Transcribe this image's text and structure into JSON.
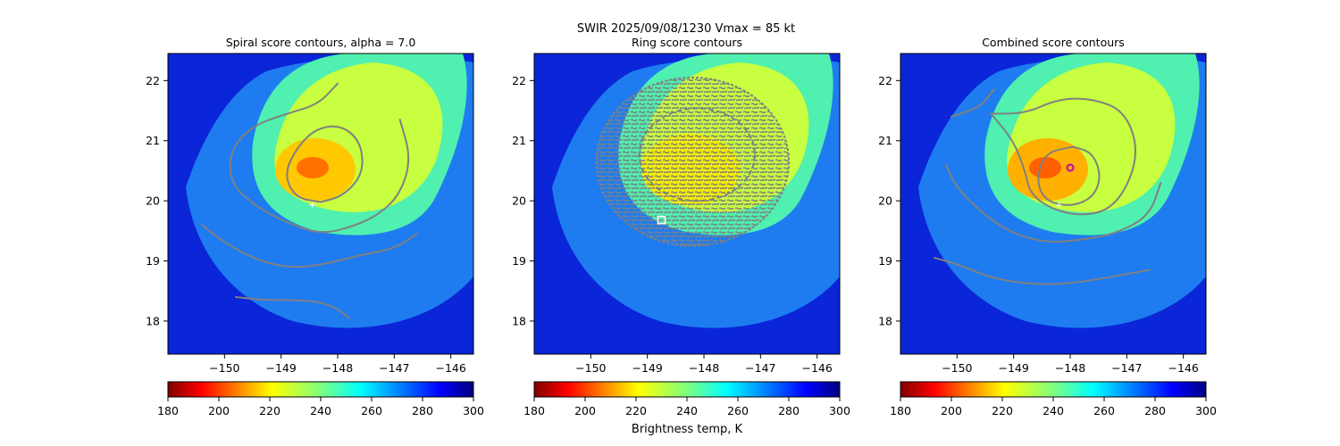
{
  "figure": {
    "suptitle": "SWIR  2025/09/08/1230    Vmax = 85 kt",
    "colorbar_label": "Brightness temp, K"
  },
  "chart_data": [
    {
      "type": "heatmap",
      "panel": "spiral",
      "title": "Spiral score contours, alpha =  7.0",
      "colormap": "jet_r",
      "xlim": [
        -151.0,
        -145.6
      ],
      "ylim": [
        17.45,
        22.45
      ],
      "xticks": [
        -150,
        -149,
        -148,
        -147,
        -146
      ],
      "xtick_labels": [
        "−150",
        "−149",
        "−148",
        "−147",
        "−146"
      ],
      "yticks": [
        18,
        19,
        20,
        21,
        22
      ],
      "ytick_labels": [
        "18",
        "19",
        "20",
        "21",
        "22"
      ],
      "colorbar": {
        "vmin": 180,
        "vmax": 300,
        "ticks": [
          180,
          200,
          220,
          240,
          260,
          280,
          300
        ],
        "tick_labels": [
          "180",
          "200",
          "220",
          "240",
          "260",
          "280",
          "300"
        ]
      },
      "center_marker": [
        -148.45,
        19.93
      ],
      "contour_color": "#808080",
      "contours": [
        [
          [
            -148.3,
            19.98
          ],
          [
            -147.9,
            20.08
          ],
          [
            -147.55,
            20.45
          ],
          [
            -147.58,
            20.95
          ],
          [
            -147.9,
            21.25
          ],
          [
            -148.35,
            21.22
          ],
          [
            -148.7,
            20.92
          ],
          [
            -148.95,
            20.45
          ],
          [
            -148.75,
            20.05
          ],
          [
            -148.3,
            19.98
          ]
        ],
        [
          [
            -148.0,
            21.95
          ],
          [
            -148.35,
            21.6
          ],
          [
            -148.9,
            21.45
          ],
          [
            -149.5,
            21.25
          ],
          [
            -149.9,
            20.85
          ],
          [
            -149.9,
            20.3
          ],
          [
            -149.5,
            19.95
          ],
          [
            -149.2,
            19.78
          ],
          [
            -148.8,
            19.6
          ],
          [
            -148.3,
            19.45
          ],
          [
            -147.8,
            19.55
          ],
          [
            -147.3,
            19.75
          ],
          [
            -146.9,
            20.1
          ],
          [
            -146.7,
            20.7
          ],
          [
            -146.9,
            21.35
          ]
        ],
        [
          [
            -150.4,
            19.6
          ],
          [
            -150.0,
            19.3
          ],
          [
            -149.4,
            19.0
          ],
          [
            -148.8,
            18.88
          ],
          [
            -148.2,
            18.95
          ],
          [
            -147.6,
            19.1
          ],
          [
            -147.0,
            19.2
          ],
          [
            -146.6,
            19.45
          ]
        ],
        [
          [
            -149.8,
            18.4
          ],
          [
            -149.3,
            18.35
          ],
          [
            -148.8,
            18.35
          ],
          [
            -148.3,
            18.32
          ],
          [
            -148.0,
            18.2
          ],
          [
            -147.8,
            18.05
          ]
        ]
      ]
    },
    {
      "type": "heatmap",
      "panel": "ring",
      "title": "Ring score contours",
      "colormap": "jet_r",
      "xlim": [
        -151.0,
        -145.6
      ],
      "ylim": [
        17.45,
        22.45
      ],
      "xticks": [
        -150,
        -149,
        -148,
        -147,
        -146
      ],
      "xtick_labels": [
        "−150",
        "−149",
        "−148",
        "−147",
        "−146"
      ],
      "yticks": [
        18,
        19,
        20,
        21,
        22
      ],
      "ytick_labels": [
        "18",
        "19",
        "20",
        "21",
        "22"
      ],
      "colorbar": {
        "vmin": 180,
        "vmax": 300,
        "ticks": [
          180,
          200,
          220,
          240,
          260,
          280,
          300
        ],
        "tick_labels": [
          "180",
          "200",
          "220",
          "240",
          "260",
          "280",
          "300"
        ]
      },
      "center_marker": [
        -148.75,
        19.68
      ],
      "ring_region": {
        "center": [
          -148.2,
          20.65
        ],
        "rx_deg": 1.7,
        "ry_deg": 1.4
      },
      "contour_color": "#808080"
    },
    {
      "type": "heatmap",
      "panel": "combined",
      "title": "Combined score contours",
      "colormap": "jet_r",
      "xlim": [
        -151.0,
        -145.6
      ],
      "ylim": [
        17.45,
        22.45
      ],
      "xticks": [
        -150,
        -149,
        -148,
        -147,
        -146
      ],
      "xtick_labels": [
        "−150",
        "−149",
        "−148",
        "−147",
        "−146"
      ],
      "yticks": [
        18,
        19,
        20,
        21,
        22
      ],
      "ytick_labels": [
        "18",
        "19",
        "20",
        "21",
        "22"
      ],
      "colorbar": {
        "vmin": 180,
        "vmax": 300,
        "ticks": [
          180,
          200,
          220,
          240,
          260,
          280,
          300
        ],
        "tick_labels": [
          "180",
          "200",
          "220",
          "240",
          "260",
          "280",
          "300"
        ]
      },
      "center_marker": [
        -148.2,
        19.93
      ],
      "best_marker": [
        -148.0,
        20.55
      ],
      "contour_color": "#808080",
      "contours": [
        [
          [
            -147.95,
            20.9
          ],
          [
            -147.6,
            20.8
          ],
          [
            -147.45,
            20.4
          ],
          [
            -147.6,
            20.05
          ],
          [
            -148.0,
            19.9
          ],
          [
            -148.45,
            20.0
          ],
          [
            -148.6,
            20.35
          ],
          [
            -148.45,
            20.8
          ],
          [
            -147.95,
            20.9
          ]
        ],
        [
          [
            -149.4,
            21.45
          ],
          [
            -149.0,
            21.0
          ],
          [
            -148.8,
            20.5
          ],
          [
            -148.7,
            20.1
          ],
          [
            -148.3,
            19.85
          ],
          [
            -147.8,
            19.75
          ],
          [
            -147.3,
            19.85
          ],
          [
            -146.95,
            20.3
          ],
          [
            -146.8,
            20.9
          ],
          [
            -147.05,
            21.5
          ],
          [
            -147.6,
            21.7
          ],
          [
            -148.2,
            21.7
          ],
          [
            -148.8,
            21.45
          ],
          [
            -149.4,
            21.45
          ]
        ],
        [
          [
            -150.2,
            20.6
          ],
          [
            -150.0,
            20.2
          ],
          [
            -149.5,
            19.75
          ],
          [
            -149.0,
            19.45
          ],
          [
            -148.4,
            19.3
          ],
          [
            -147.8,
            19.35
          ],
          [
            -147.2,
            19.45
          ],
          [
            -146.6,
            19.75
          ],
          [
            -146.4,
            20.3
          ]
        ],
        [
          [
            -150.4,
            19.05
          ],
          [
            -150.0,
            18.95
          ],
          [
            -149.5,
            18.75
          ],
          [
            -149.0,
            18.65
          ],
          [
            -148.4,
            18.6
          ],
          [
            -147.8,
            18.65
          ],
          [
            -147.2,
            18.75
          ],
          [
            -146.6,
            18.85
          ]
        ],
        [
          [
            -150.1,
            21.4
          ],
          [
            -149.6,
            21.55
          ],
          [
            -149.35,
            21.85
          ]
        ]
      ]
    }
  ]
}
